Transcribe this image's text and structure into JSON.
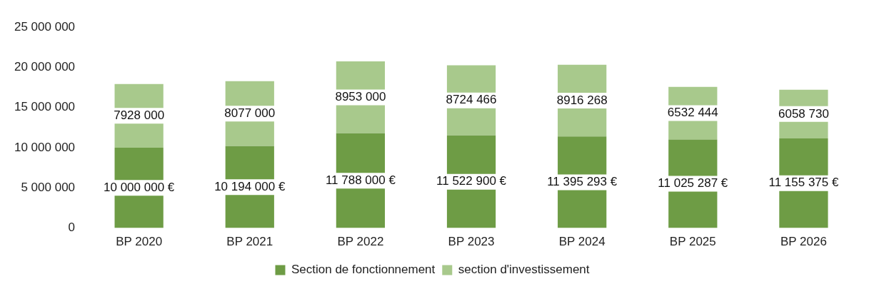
{
  "chart_data": {
    "type": "bar",
    "stacked": true,
    "categories": [
      "BP 2020",
      "BP 2021",
      "BP 2022",
      "BP 2023",
      "BP 2024",
      "BP 2025",
      "BP 2026"
    ],
    "series": [
      {
        "name": "Section de fonctionnement",
        "color": "#6e9c45",
        "values": [
          10000000,
          10194000,
          11788000,
          11522900,
          11395293,
          11025287,
          11155375
        ],
        "value_labels": [
          "10 000 000 €",
          "10 194 000 €",
          "11 788 000 €",
          "11 522 900 €",
          "11 395 293 €",
          "11 025 287 €",
          "11 155 375 €"
        ]
      },
      {
        "name": "section d'investissement",
        "color": "#a8c98c",
        "values": [
          7928000,
          8077000,
          8953000,
          8724466,
          8916268,
          6532444,
          6058730
        ],
        "value_labels": [
          "7928 000",
          "8077 000",
          "8953 000",
          "8724 466",
          "8916 268",
          "6532 444",
          "6058 730"
        ]
      }
    ],
    "ylim": [
      0,
      25000000
    ],
    "yticks": [
      {
        "value": 0,
        "label": "0"
      },
      {
        "value": 5000000,
        "label": "5 000 000"
      },
      {
        "value": 10000000,
        "label": "10 000 000"
      },
      {
        "value": 15000000,
        "label": "15 000 000"
      },
      {
        "value": 20000000,
        "label": "20 000 000"
      },
      {
        "value": 25000000,
        "label": "25 000 000"
      }
    ],
    "grid": false,
    "legend": "bottom"
  }
}
